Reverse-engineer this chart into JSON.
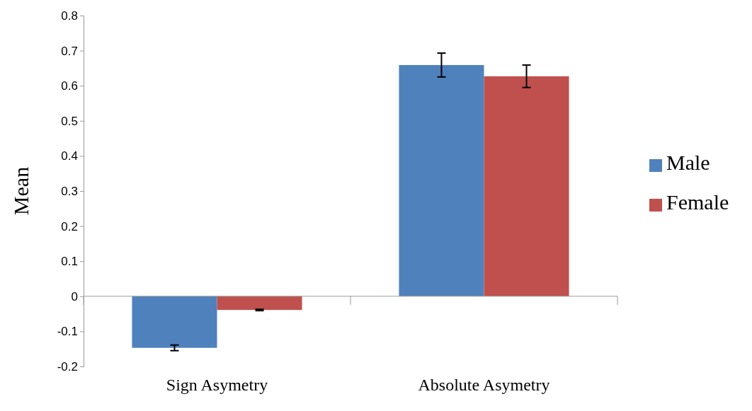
{
  "chart_data": {
    "type": "bar",
    "ylabel": "Mean",
    "categories": [
      "Sign Asymetry",
      "Absolute Asymetry"
    ],
    "series": [
      {
        "name": "Male",
        "color": "#4f81bd",
        "values": [
          -0.147,
          0.659
        ],
        "errors": [
          0.008,
          0.034
        ]
      },
      {
        "name": "Female",
        "color": "#c0504d",
        "values": [
          -0.039,
          0.627
        ],
        "errors": [
          0.002,
          0.032
        ]
      }
    ],
    "ylim": [
      -0.2,
      0.8
    ],
    "yticks": [
      -0.2,
      -0.1,
      0,
      0.1,
      0.2,
      0.3,
      0.4,
      0.5,
      0.6,
      0.7,
      0.8
    ],
    "legend": "right"
  }
}
